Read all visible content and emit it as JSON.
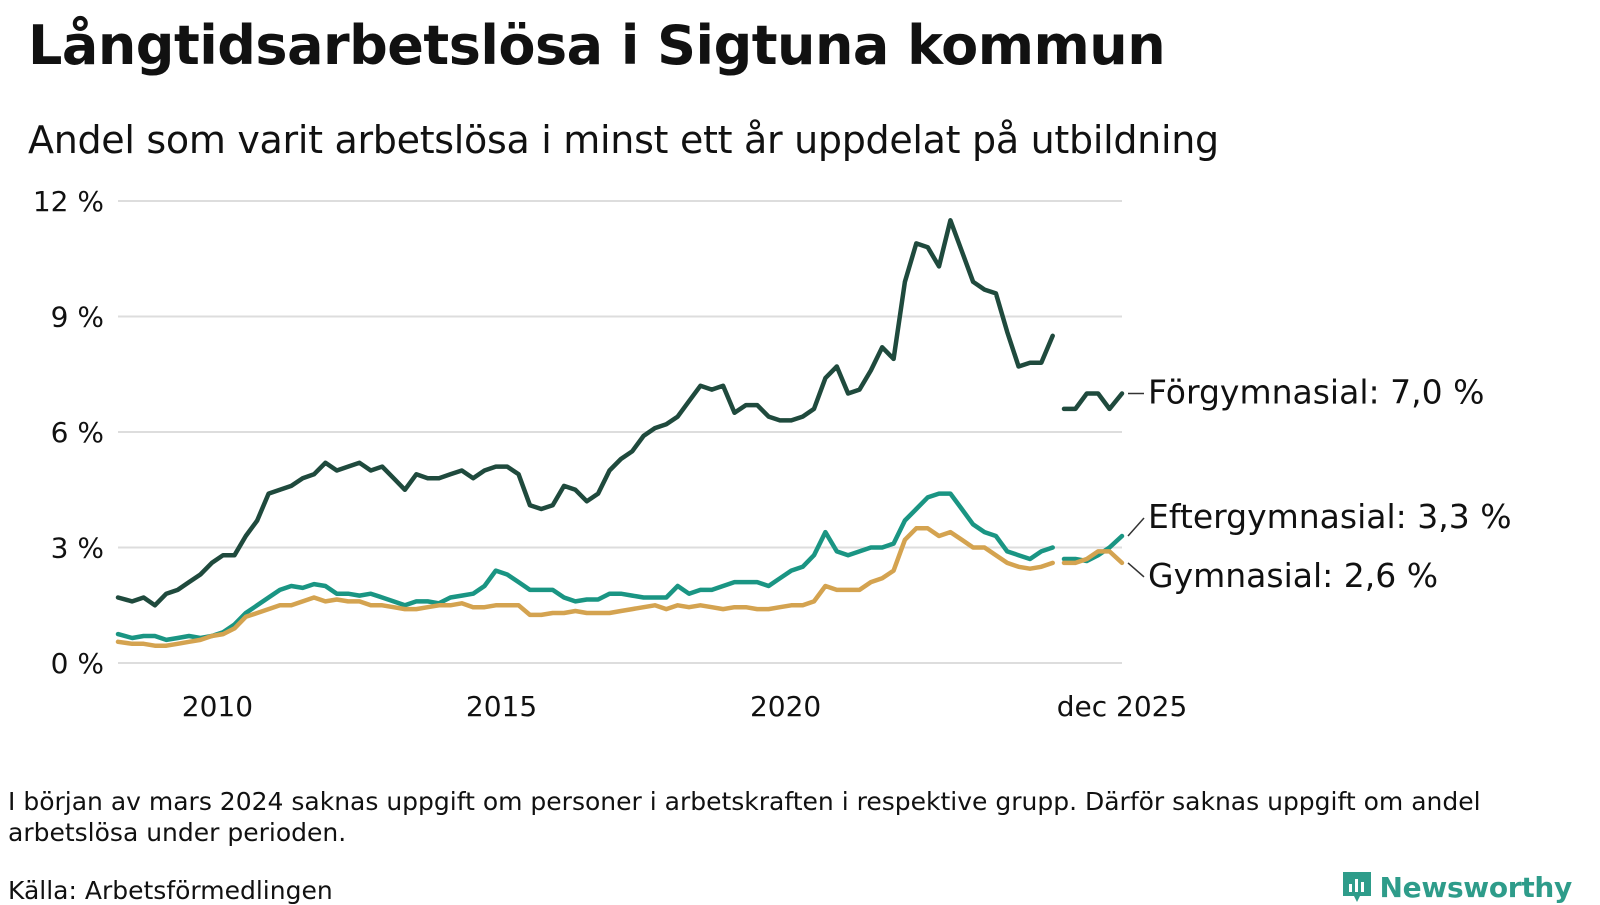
{
  "header": {
    "title": "Långtidsarbetslösa i Sigtuna kommun",
    "subtitle": "Andel som varit arbetslösa i minst ett år uppdelat på utbildning"
  },
  "footer": {
    "note": "I början av mars 2024 saknas uppgift om personer i arbetskraften i respektive grupp. Därför saknas uppgift om andel arbetslösa under perioden.",
    "source": "Källa: Arbetsförmedlingen",
    "brand": "Newsworthy"
  },
  "colors": {
    "forgymnasial": "#1f4a3d",
    "eftergymnasial": "#1a9583",
    "gymnasial": "#d4a350",
    "grid": "#dddddd",
    "brand": "#2e9c8a"
  },
  "chart_data": {
    "type": "line",
    "title": "Långtidsarbetslösa i Sigtuna kommun",
    "subtitle": "Andel som varit arbetslösa i minst ett år uppdelat på utbildning",
    "xlabel": "",
    "ylabel": "",
    "xlim": [
      2008.25,
      2025.92
    ],
    "ylim": [
      0,
      12
    ],
    "y_ticks": [
      {
        "value": 0,
        "label": "0 %"
      },
      {
        "value": 3,
        "label": "3 %"
      },
      {
        "value": 6,
        "label": "6 %"
      },
      {
        "value": 9,
        "label": "9 %"
      },
      {
        "value": 12,
        "label": "12 %"
      }
    ],
    "x_ticks": [
      {
        "value": 2010,
        "label": "2010"
      },
      {
        "value": 2015,
        "label": "2015"
      },
      {
        "value": 2020,
        "label": "2020"
      },
      {
        "value": 2025.92,
        "label": "dec 2025"
      }
    ],
    "grid": "horizontal",
    "series": [
      {
        "name": "Förgymnasial",
        "label": "Förgymnasial: 7,0 %",
        "color_key": "forgymnasial",
        "points": [
          [
            2008.25,
            1.7
          ],
          [
            2008.5,
            1.6
          ],
          [
            2008.7,
            1.7
          ],
          [
            2008.9,
            1.5
          ],
          [
            2009.1,
            1.8
          ],
          [
            2009.3,
            1.9
          ],
          [
            2009.5,
            2.1
          ],
          [
            2009.7,
            2.3
          ],
          [
            2009.9,
            2.6
          ],
          [
            2010.1,
            2.8
          ],
          [
            2010.3,
            2.8
          ],
          [
            2010.5,
            3.3
          ],
          [
            2010.7,
            3.7
          ],
          [
            2010.9,
            4.4
          ],
          [
            2011.1,
            4.5
          ],
          [
            2011.3,
            4.6
          ],
          [
            2011.5,
            4.8
          ],
          [
            2011.7,
            4.9
          ],
          [
            2011.9,
            5.2
          ],
          [
            2012.1,
            5.0
          ],
          [
            2012.3,
            5.1
          ],
          [
            2012.5,
            5.2
          ],
          [
            2012.7,
            5.0
          ],
          [
            2012.9,
            5.1
          ],
          [
            2013.1,
            4.8
          ],
          [
            2013.3,
            4.5
          ],
          [
            2013.5,
            4.9
          ],
          [
            2013.7,
            4.8
          ],
          [
            2013.9,
            4.8
          ],
          [
            2014.1,
            4.9
          ],
          [
            2014.3,
            5.0
          ],
          [
            2014.5,
            4.8
          ],
          [
            2014.7,
            5.0
          ],
          [
            2014.9,
            5.1
          ],
          [
            2015.1,
            5.1
          ],
          [
            2015.3,
            4.9
          ],
          [
            2015.5,
            4.1
          ],
          [
            2015.7,
            4.0
          ],
          [
            2015.9,
            4.1
          ],
          [
            2016.1,
            4.6
          ],
          [
            2016.3,
            4.5
          ],
          [
            2016.5,
            4.2
          ],
          [
            2016.7,
            4.4
          ],
          [
            2016.9,
            5.0
          ],
          [
            2017.1,
            5.3
          ],
          [
            2017.3,
            5.5
          ],
          [
            2017.5,
            5.9
          ],
          [
            2017.7,
            6.1
          ],
          [
            2017.9,
            6.2
          ],
          [
            2018.1,
            6.4
          ],
          [
            2018.3,
            6.8
          ],
          [
            2018.5,
            7.2
          ],
          [
            2018.7,
            7.1
          ],
          [
            2018.9,
            7.2
          ],
          [
            2019.1,
            6.5
          ],
          [
            2019.3,
            6.7
          ],
          [
            2019.5,
            6.7
          ],
          [
            2019.7,
            6.4
          ],
          [
            2019.9,
            6.3
          ],
          [
            2020.1,
            6.3
          ],
          [
            2020.3,
            6.4
          ],
          [
            2020.5,
            6.6
          ],
          [
            2020.7,
            7.4
          ],
          [
            2020.9,
            7.7
          ],
          [
            2021.1,
            7.0
          ],
          [
            2021.3,
            7.1
          ],
          [
            2021.5,
            7.6
          ],
          [
            2021.7,
            8.2
          ],
          [
            2021.9,
            7.9
          ],
          [
            2022.1,
            9.9
          ],
          [
            2022.3,
            10.9
          ],
          [
            2022.5,
            10.8
          ],
          [
            2022.7,
            10.3
          ],
          [
            2022.9,
            11.5
          ],
          [
            2023.1,
            10.7
          ],
          [
            2023.3,
            9.9
          ],
          [
            2023.5,
            9.7
          ],
          [
            2023.7,
            9.6
          ],
          [
            2023.9,
            8.6
          ],
          [
            2024.1,
            7.7
          ],
          [
            2024.3,
            7.8
          ],
          [
            2024.5,
            7.8
          ],
          [
            2024.7,
            8.5
          ],
          null,
          [
            2024.9,
            6.6
          ],
          [
            2025.1,
            6.6
          ],
          [
            2025.3,
            7.0
          ],
          [
            2025.5,
            7.0
          ],
          [
            2025.7,
            6.6
          ],
          [
            2025.92,
            7.0
          ]
        ]
      },
      {
        "name": "Eftergymnasial",
        "label": "Eftergymnasial: 3,3 %",
        "color_key": "eftergymnasial",
        "points": [
          [
            2008.25,
            0.75
          ],
          [
            2008.5,
            0.65
          ],
          [
            2008.7,
            0.7
          ],
          [
            2008.9,
            0.7
          ],
          [
            2009.1,
            0.6
          ],
          [
            2009.3,
            0.65
          ],
          [
            2009.5,
            0.7
          ],
          [
            2009.7,
            0.65
          ],
          [
            2009.9,
            0.7
          ],
          [
            2010.1,
            0.8
          ],
          [
            2010.3,
            1.0
          ],
          [
            2010.5,
            1.3
          ],
          [
            2010.7,
            1.5
          ],
          [
            2010.9,
            1.7
          ],
          [
            2011.1,
            1.9
          ],
          [
            2011.3,
            2.0
          ],
          [
            2011.5,
            1.95
          ],
          [
            2011.7,
            2.05
          ],
          [
            2011.9,
            2.0
          ],
          [
            2012.1,
            1.8
          ],
          [
            2012.3,
            1.8
          ],
          [
            2012.5,
            1.75
          ],
          [
            2012.7,
            1.8
          ],
          [
            2012.9,
            1.7
          ],
          [
            2013.1,
            1.6
          ],
          [
            2013.3,
            1.5
          ],
          [
            2013.5,
            1.6
          ],
          [
            2013.7,
            1.6
          ],
          [
            2013.9,
            1.55
          ],
          [
            2014.1,
            1.7
          ],
          [
            2014.3,
            1.75
          ],
          [
            2014.5,
            1.8
          ],
          [
            2014.7,
            2.0
          ],
          [
            2014.9,
            2.4
          ],
          [
            2015.1,
            2.3
          ],
          [
            2015.3,
            2.1
          ],
          [
            2015.5,
            1.9
          ],
          [
            2015.7,
            1.9
          ],
          [
            2015.9,
            1.9
          ],
          [
            2016.1,
            1.7
          ],
          [
            2016.3,
            1.6
          ],
          [
            2016.5,
            1.65
          ],
          [
            2016.7,
            1.65
          ],
          [
            2016.9,
            1.8
          ],
          [
            2017.1,
            1.8
          ],
          [
            2017.3,
            1.75
          ],
          [
            2017.5,
            1.7
          ],
          [
            2017.7,
            1.7
          ],
          [
            2017.9,
            1.7
          ],
          [
            2018.1,
            2.0
          ],
          [
            2018.3,
            1.8
          ],
          [
            2018.5,
            1.9
          ],
          [
            2018.7,
            1.9
          ],
          [
            2018.9,
            2.0
          ],
          [
            2019.1,
            2.1
          ],
          [
            2019.3,
            2.1
          ],
          [
            2019.5,
            2.1
          ],
          [
            2019.7,
            2.0
          ],
          [
            2019.9,
            2.2
          ],
          [
            2020.1,
            2.4
          ],
          [
            2020.3,
            2.5
          ],
          [
            2020.5,
            2.8
          ],
          [
            2020.7,
            3.4
          ],
          [
            2020.9,
            2.9
          ],
          [
            2021.1,
            2.8
          ],
          [
            2021.3,
            2.9
          ],
          [
            2021.5,
            3.0
          ],
          [
            2021.7,
            3.0
          ],
          [
            2021.9,
            3.1
          ],
          [
            2022.1,
            3.7
          ],
          [
            2022.3,
            4.0
          ],
          [
            2022.5,
            4.3
          ],
          [
            2022.7,
            4.4
          ],
          [
            2022.9,
            4.4
          ],
          [
            2023.1,
            4.0
          ],
          [
            2023.3,
            3.6
          ],
          [
            2023.5,
            3.4
          ],
          [
            2023.7,
            3.3
          ],
          [
            2023.9,
            2.9
          ],
          [
            2024.1,
            2.8
          ],
          [
            2024.3,
            2.7
          ],
          [
            2024.5,
            2.9
          ],
          [
            2024.7,
            3.0
          ],
          null,
          [
            2024.9,
            2.7
          ],
          [
            2025.1,
            2.7
          ],
          [
            2025.3,
            2.65
          ],
          [
            2025.5,
            2.8
          ],
          [
            2025.7,
            3.0
          ],
          [
            2025.92,
            3.3
          ]
        ]
      },
      {
        "name": "Gymnasial",
        "label": "Gymnasial: 2,6 %",
        "color_key": "gymnasial",
        "points": [
          [
            2008.25,
            0.55
          ],
          [
            2008.5,
            0.5
          ],
          [
            2008.7,
            0.5
          ],
          [
            2008.9,
            0.45
          ],
          [
            2009.1,
            0.45
          ],
          [
            2009.3,
            0.5
          ],
          [
            2009.5,
            0.55
          ],
          [
            2009.7,
            0.6
          ],
          [
            2009.9,
            0.7
          ],
          [
            2010.1,
            0.75
          ],
          [
            2010.3,
            0.9
          ],
          [
            2010.5,
            1.2
          ],
          [
            2010.7,
            1.3
          ],
          [
            2010.9,
            1.4
          ],
          [
            2011.1,
            1.5
          ],
          [
            2011.3,
            1.5
          ],
          [
            2011.5,
            1.6
          ],
          [
            2011.7,
            1.7
          ],
          [
            2011.9,
            1.6
          ],
          [
            2012.1,
            1.65
          ],
          [
            2012.3,
            1.6
          ],
          [
            2012.5,
            1.6
          ],
          [
            2012.7,
            1.5
          ],
          [
            2012.9,
            1.5
          ],
          [
            2013.1,
            1.45
          ],
          [
            2013.3,
            1.4
          ],
          [
            2013.5,
            1.4
          ],
          [
            2013.7,
            1.45
          ],
          [
            2013.9,
            1.5
          ],
          [
            2014.1,
            1.5
          ],
          [
            2014.3,
            1.55
          ],
          [
            2014.5,
            1.45
          ],
          [
            2014.7,
            1.45
          ],
          [
            2014.9,
            1.5
          ],
          [
            2015.1,
            1.5
          ],
          [
            2015.3,
            1.5
          ],
          [
            2015.5,
            1.25
          ],
          [
            2015.7,
            1.25
          ],
          [
            2015.9,
            1.3
          ],
          [
            2016.1,
            1.3
          ],
          [
            2016.3,
            1.35
          ],
          [
            2016.5,
            1.3
          ],
          [
            2016.7,
            1.3
          ],
          [
            2016.9,
            1.3
          ],
          [
            2017.1,
            1.35
          ],
          [
            2017.3,
            1.4
          ],
          [
            2017.5,
            1.45
          ],
          [
            2017.7,
            1.5
          ],
          [
            2017.9,
            1.4
          ],
          [
            2018.1,
            1.5
          ],
          [
            2018.3,
            1.45
          ],
          [
            2018.5,
            1.5
          ],
          [
            2018.7,
            1.45
          ],
          [
            2018.9,
            1.4
          ],
          [
            2019.1,
            1.45
          ],
          [
            2019.3,
            1.45
          ],
          [
            2019.5,
            1.4
          ],
          [
            2019.7,
            1.4
          ],
          [
            2019.9,
            1.45
          ],
          [
            2020.1,
            1.5
          ],
          [
            2020.3,
            1.5
          ],
          [
            2020.5,
            1.6
          ],
          [
            2020.7,
            2.0
          ],
          [
            2020.9,
            1.9
          ],
          [
            2021.1,
            1.9
          ],
          [
            2021.3,
            1.9
          ],
          [
            2021.5,
            2.1
          ],
          [
            2021.7,
            2.2
          ],
          [
            2021.9,
            2.4
          ],
          [
            2022.1,
            3.2
          ],
          [
            2022.3,
            3.5
          ],
          [
            2022.5,
            3.5
          ],
          [
            2022.7,
            3.3
          ],
          [
            2022.9,
            3.4
          ],
          [
            2023.1,
            3.2
          ],
          [
            2023.3,
            3.0
          ],
          [
            2023.5,
            3.0
          ],
          [
            2023.7,
            2.8
          ],
          [
            2023.9,
            2.6
          ],
          [
            2024.1,
            2.5
          ],
          [
            2024.3,
            2.45
          ],
          [
            2024.5,
            2.5
          ],
          [
            2024.7,
            2.6
          ],
          null,
          [
            2024.9,
            2.6
          ],
          [
            2025.1,
            2.6
          ],
          [
            2025.3,
            2.7
          ],
          [
            2025.5,
            2.9
          ],
          [
            2025.7,
            2.9
          ],
          [
            2025.92,
            2.6
          ]
        ]
      }
    ]
  }
}
